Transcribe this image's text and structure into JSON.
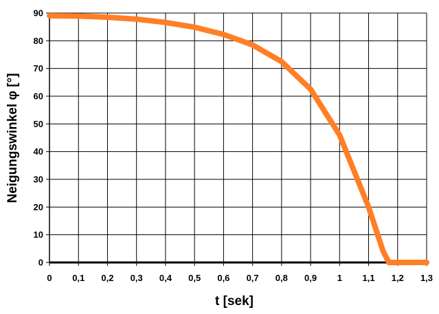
{
  "chart_data": {
    "type": "line",
    "title": "",
    "xlabel": "t [sek]",
    "ylabel": "Neigungswinkel φ [°]",
    "xlim": [
      0,
      1.3
    ],
    "ylim": [
      0,
      90
    ],
    "x_ticks": [
      "0",
      "0,1",
      "0,2",
      "0,3",
      "0,4",
      "0,5",
      "0,6",
      "0,7",
      "0,8",
      "0,9",
      "1",
      "1,1",
      "1,2",
      "1,3"
    ],
    "y_ticks": [
      "0",
      "10",
      "20",
      "30",
      "40",
      "50",
      "60",
      "70",
      "80",
      "90"
    ],
    "grid": true,
    "legend": "none",
    "series": [
      {
        "color": "#ff7f27",
        "x": [
          0,
          0.1,
          0.2,
          0.3,
          0.4,
          0.5,
          0.6,
          0.7,
          0.8,
          0.9,
          1.0,
          1.1,
          1.15,
          1.17,
          1.2,
          1.3
        ],
        "y": [
          89,
          88.9,
          88.5,
          87.8,
          86.6,
          84.9,
          82.3,
          78.5,
          72.5,
          62.5,
          46,
          20,
          4,
          0,
          0,
          0
        ]
      }
    ]
  }
}
